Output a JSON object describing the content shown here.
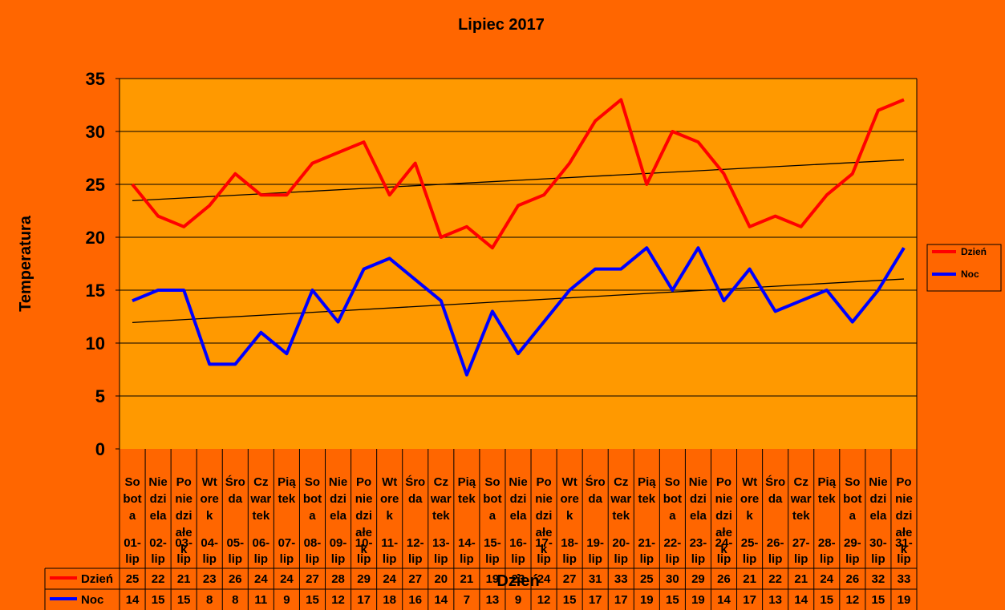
{
  "chart_data": {
    "type": "line",
    "title": "Lipiec 2017",
    "xlabel": "Dzień",
    "ylabel": "Temperatura",
    "ylim": [
      0,
      35
    ],
    "yticks": [
      "0",
      "5",
      "10",
      "15",
      "20",
      "25",
      "30",
      "35"
    ],
    "grid": true,
    "legend_position": "right",
    "categories": [
      {
        "day": "So bot a",
        "date": "01- lip"
      },
      {
        "day": "Nie dzi ela",
        "date": "02- lip"
      },
      {
        "day": "Po nie dzi ałe k",
        "date": "03- lip"
      },
      {
        "day": "Wt ore k",
        "date": "04- lip"
      },
      {
        "day": "Śro da",
        "date": "05- lip"
      },
      {
        "day": "Cz war tek",
        "date": "06- lip"
      },
      {
        "day": "Pią tek",
        "date": "07- lip"
      },
      {
        "day": "So bot a",
        "date": "08- lip"
      },
      {
        "day": "Nie dzi ela",
        "date": "09- lip"
      },
      {
        "day": "Po nie dzi ałe k",
        "date": "10- lip"
      },
      {
        "day": "Wt ore k",
        "date": "11- lip"
      },
      {
        "day": "Śro da",
        "date": "12- lip"
      },
      {
        "day": "Cz war tek",
        "date": "13- lip"
      },
      {
        "day": "Pią tek",
        "date": "14- lip"
      },
      {
        "day": "So bot a",
        "date": "15- lip"
      },
      {
        "day": "Nie dzi ela",
        "date": "16- lip"
      },
      {
        "day": "Po nie dzi ałe k",
        "date": "17- lip"
      },
      {
        "day": "Wt ore k",
        "date": "18- lip"
      },
      {
        "day": "Śro da",
        "date": "19- lip"
      },
      {
        "day": "Cz war tek",
        "date": "20- lip"
      },
      {
        "day": "Pią tek",
        "date": "21- lip"
      },
      {
        "day": "So bot a",
        "date": "22- lip"
      },
      {
        "day": "Nie dzi ela",
        "date": "23- lip"
      },
      {
        "day": "Po nie dzi ałe k",
        "date": "24- lip"
      },
      {
        "day": "Wt ore k",
        "date": "25- lip"
      },
      {
        "day": "Śro da",
        "date": "26- lip"
      },
      {
        "day": "Cz war tek",
        "date": "27- lip"
      },
      {
        "day": "Pią tek",
        "date": "28- lip"
      },
      {
        "day": "So bot a",
        "date": "29- lip"
      },
      {
        "day": "Nie dzi ela",
        "date": "30- lip"
      },
      {
        "day": "Po nie dzi ałe k",
        "date": "31- lip"
      }
    ],
    "series": [
      {
        "name": "Dzień",
        "color": "#FF0000",
        "values": [
          25,
          22,
          21,
          23,
          26,
          24,
          24,
          27,
          28,
          29,
          24,
          27,
          20,
          21,
          19,
          23,
          24,
          27,
          31,
          33,
          25,
          30,
          29,
          26,
          21,
          22,
          21,
          24,
          26,
          32,
          33
        ]
      },
      {
        "name": "Noc",
        "color": "#0000FF",
        "values": [
          14,
          15,
          15,
          8,
          8,
          11,
          9,
          15,
          12,
          17,
          18,
          16,
          14,
          7,
          13,
          9,
          12,
          15,
          17,
          17,
          19,
          15,
          19,
          14,
          17,
          13,
          14,
          15,
          12,
          15,
          19
        ]
      }
    ],
    "trendlines": true,
    "colors": {
      "background": "#FF6600",
      "plot_area": "#FF9900",
      "grid": "#000000",
      "trendline": "#000000"
    }
  }
}
